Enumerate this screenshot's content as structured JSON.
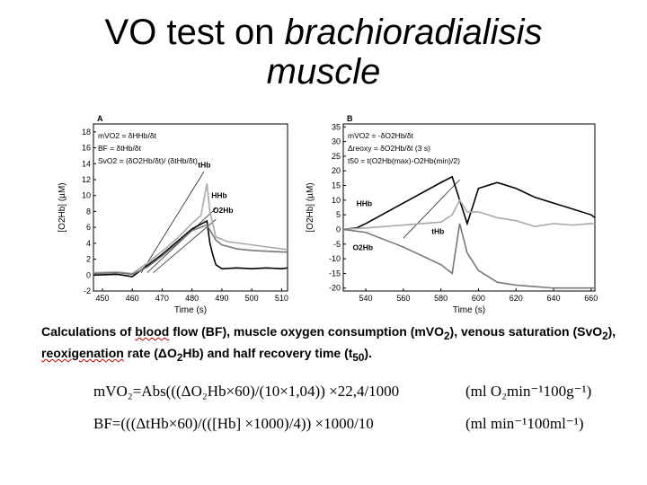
{
  "slide": {
    "title_plain": "VO test on ",
    "title_italic_1": "brachioradialisis",
    "title_italic_2": "muscle"
  },
  "chart_data": [
    {
      "type": "line",
      "panel_label": "A",
      "xlabel": "Time (s)",
      "ylabel": "[O2Hb] (µM)",
      "xlim": [
        447,
        512
      ],
      "ylim": [
        -2,
        19
      ],
      "xticks": [
        450,
        460,
        470,
        480,
        490,
        500,
        510
      ],
      "yticks": [
        -2,
        0,
        2,
        4,
        6,
        8,
        10,
        12,
        14,
        16,
        18
      ],
      "annotations": [
        "mVO2 = δHHb/δt",
        "BF = δtHb/δt",
        "SvO2 = (δO2Hb/δt)/ (δtHb/δt)"
      ],
      "series": [
        {
          "name": "tHb",
          "color": "#aaaaaa",
          "x": [
            447,
            455,
            460,
            465,
            470,
            475,
            480,
            483,
            485,
            486,
            488,
            492,
            500,
            510,
            512
          ],
          "y": [
            0.3,
            0.4,
            0.2,
            1.5,
            3,
            4.6,
            6.5,
            7.5,
            11.5,
            8,
            4.8,
            4.2,
            3.8,
            3.3,
            3.2
          ]
        },
        {
          "name": "HHb",
          "color": "#000000",
          "x": [
            447,
            455,
            460,
            465,
            470,
            475,
            480,
            485,
            486,
            487,
            488,
            490,
            495,
            500,
            505,
            510,
            512
          ],
          "y": [
            0,
            0.1,
            -0.2,
            1.2,
            2.6,
            4.2,
            5.8,
            6.8,
            4,
            2.5,
            1.3,
            0.8,
            0.9,
            0.8,
            0.9,
            0.8,
            0.9
          ]
        },
        {
          "name": "O2Hb",
          "color": "#777777",
          "x": [
            447,
            455,
            460,
            465,
            470,
            475,
            480,
            485,
            488,
            490,
            495,
            500,
            510,
            512
          ],
          "y": [
            0.2,
            0.3,
            0.1,
            1,
            2.4,
            4,
            5.6,
            6.3,
            4.4,
            3.8,
            3.3,
            3.1,
            2.9,
            2.9
          ]
        }
      ]
    },
    {
      "type": "line",
      "panel_label": "B",
      "xlabel": "Time (s)",
      "ylabel": "[O2Hb] (µM)",
      "xlim": [
        528,
        662
      ],
      "ylim": [
        -21,
        36
      ],
      "xticks": [
        540,
        560,
        580,
        600,
        620,
        640,
        660
      ],
      "yticks": [
        -20,
        -15,
        -10,
        -5,
        0,
        5,
        10,
        15,
        20,
        25,
        30,
        35
      ],
      "annotations": [
        "mVO2 = -δO2Hb/δt",
        "Δreoxy = δO2Hb/δt (3 s)",
        "t50 = t(O2Hb(max)-O2Hb(min)/2)"
      ],
      "series": [
        {
          "name": "HHb",
          "color": "#000000",
          "x": [
            528,
            535,
            540,
            560,
            580,
            586,
            590,
            594,
            600,
            610,
            620,
            630,
            640,
            650,
            660,
            662
          ],
          "y": [
            0,
            0.5,
            2,
            9,
            16,
            18,
            10,
            2,
            14,
            16,
            14,
            11,
            9,
            7,
            5,
            4
          ]
        },
        {
          "name": "tHb",
          "color": "#aaaaaa",
          "x": [
            528,
            540,
            560,
            580,
            586,
            590,
            594,
            600,
            610,
            620,
            630,
            640,
            650,
            660,
            662
          ],
          "y": [
            0,
            0.5,
            1.5,
            2.5,
            5,
            10,
            6,
            6,
            4,
            3,
            1,
            2,
            1.5,
            2,
            2
          ]
        },
        {
          "name": "O2Hb",
          "color": "#777777",
          "x": [
            528,
            540,
            560,
            580,
            586,
            590,
            594,
            600,
            610,
            620,
            630,
            640,
            650,
            660,
            662
          ],
          "y": [
            0,
            -1,
            -6,
            -12,
            -15,
            2,
            -8,
            -14,
            -18,
            -19,
            -19.5,
            -20,
            -20,
            -20,
            -20
          ]
        }
      ]
    }
  ],
  "caption": {
    "p1": "Calculations of  ",
    "blood": "blood",
    "p2": " flow (BF),  muscle oxygen consumption (mVO",
    "p3": "), venous saturation (SvO",
    "p4": "),",
    "reox": "reoxigenation",
    "p5": " rate (ΔO",
    "p6": "Hb) and half recovery time (t",
    "p7": ")."
  },
  "formulas": {
    "f1": "mVO₂=Abs(((ΔO₂Hb×60)/(10×1,04)) ×22,4/1000",
    "f1_unit": "(ml O₂min⁻¹100g⁻¹)",
    "f2": "BF=(((ΔtHb×60)/(([Hb] ×1000)/4)) ×1000/10",
    "f2_unit": "(ml min⁻¹100ml⁻¹)"
  }
}
